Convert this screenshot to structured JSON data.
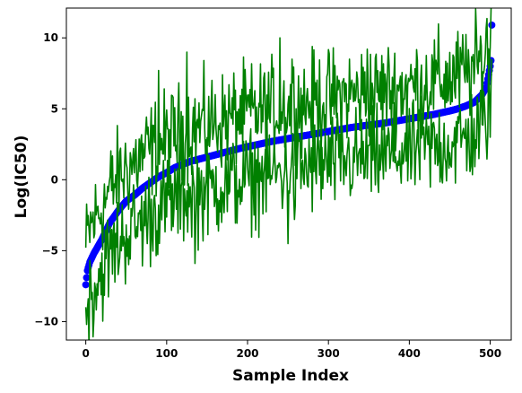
{
  "chart_data": {
    "type": "line",
    "title": "",
    "xlabel": "Sample Index",
    "ylabel": "Log(IC50)",
    "xlim": [
      -24,
      526
    ],
    "ylim": [
      -11.3,
      12.1
    ],
    "xticks": [
      0,
      100,
      200,
      300,
      400,
      500
    ],
    "yticks": [
      -10,
      -5,
      0,
      5,
      10
    ],
    "grid": false,
    "legend": "none",
    "n_points": 503,
    "series": [
      {
        "role": "scatter-sorted-values",
        "marker": "circle",
        "color": "#0000ff",
        "anchors_x": [
          0,
          2,
          5,
          10,
          20,
          30,
          40,
          50,
          60,
          70,
          80,
          90,
          100,
          110,
          120,
          130,
          150,
          170,
          190,
          210,
          230,
          250,
          270,
          290,
          310,
          330,
          350,
          370,
          390,
          410,
          430,
          450,
          460,
          470,
          480,
          490,
          495,
          498,
          500,
          501,
          502
        ],
        "anchors_y": [
          -7.4,
          -6.4,
          -5.8,
          -5.2,
          -4.2,
          -3.0,
          -2.2,
          -1.5,
          -1.1,
          -0.6,
          -0.2,
          0.2,
          0.5,
          0.85,
          1.1,
          1.3,
          1.6,
          1.9,
          2.2,
          2.45,
          2.7,
          2.9,
          3.1,
          3.3,
          3.5,
          3.7,
          3.85,
          4.0,
          4.2,
          4.4,
          4.6,
          4.85,
          5.0,
          5.2,
          5.45,
          6.0,
          6.5,
          7.4,
          8.0,
          8.4,
          10.9
        ]
      },
      {
        "role": "upper-band",
        "color": "#008000",
        "offset_mean": 2.3,
        "noise_amplitude": 1.7,
        "spike_peaks": [
          {
            "x": 90,
            "y": 7.7
          },
          {
            "x": 125,
            "y": 9.0
          },
          {
            "x": 240,
            "y": 10.0
          },
          {
            "x": 255,
            "y": 8.5
          },
          {
            "x": 348,
            "y": 9.2
          },
          {
            "x": 495,
            "y": 10.7
          }
        ]
      },
      {
        "role": "lower-band",
        "color": "#008000",
        "offset_mean": -2.3,
        "noise_amplitude": 1.7,
        "spike_troughs": [
          {
            "x": 1,
            "y": -10.2
          },
          {
            "x": 10,
            "y": -9.8
          },
          {
            "x": 135,
            "y": -5.9
          },
          {
            "x": 250,
            "y": -4.5
          },
          {
            "x": 258,
            "y": -2.8
          },
          {
            "x": 500,
            "y": 3.0
          }
        ]
      }
    ]
  }
}
